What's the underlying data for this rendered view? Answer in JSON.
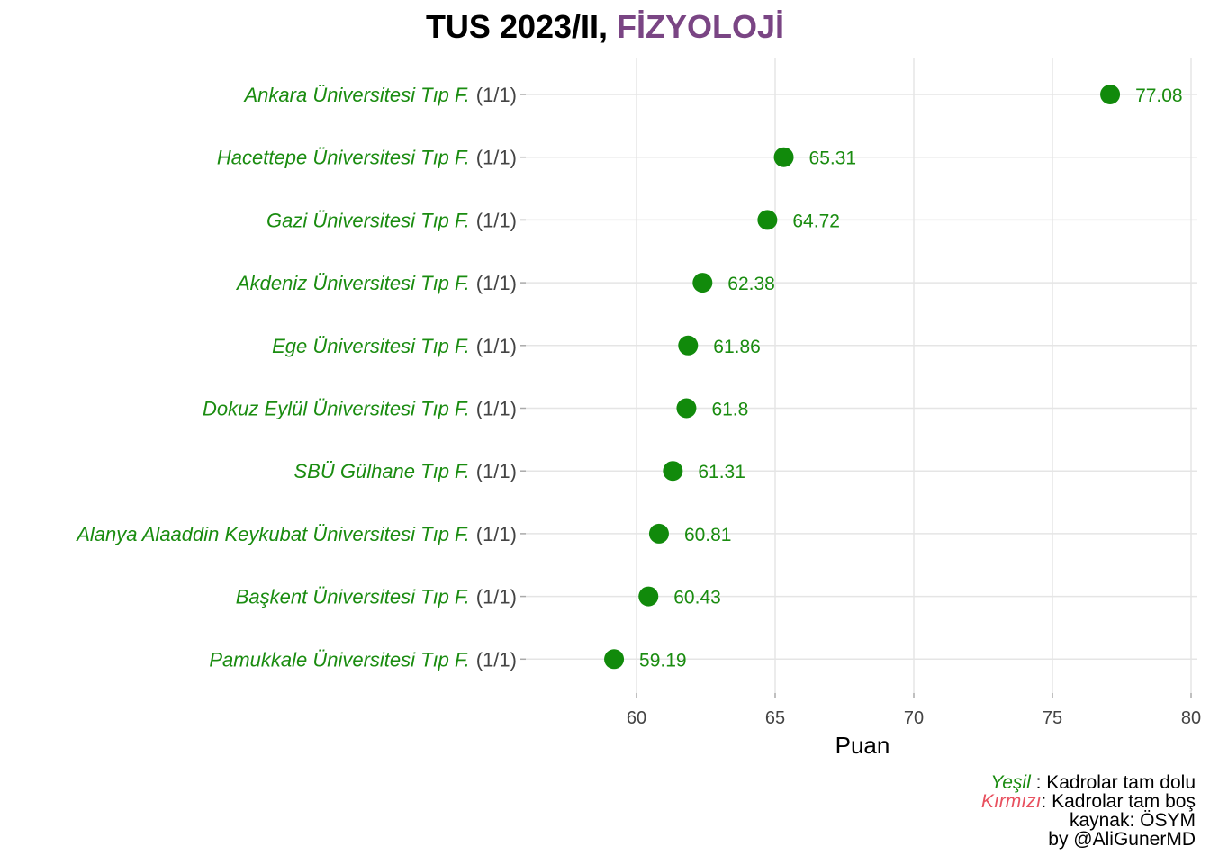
{
  "chart_data": {
    "type": "scatter",
    "orientation": "horizontal-dot",
    "title": "TUS 2023/II, ",
    "title_accent": "FİZYOLOJİ",
    "xlabel": "Puan",
    "ylabel": "",
    "xlim": [
      56,
      80
    ],
    "xticks": [
      60,
      65,
      70,
      75,
      80
    ],
    "grid": true,
    "legend": "none",
    "colors": {
      "point": "#118a0b",
      "label_green": "#1a8c10",
      "accent_title": "#7a4584",
      "red": "#e8515f"
    },
    "rows": [
      {
        "name": "Ankara Üniversitesi Tıp F.",
        "count": "(1/1)",
        "value": 77.08,
        "label": "77.08"
      },
      {
        "name": "Hacettepe Üniversitesi Tıp F.",
        "count": "(1/1)",
        "value": 65.31,
        "label": "65.31"
      },
      {
        "name": "Gazi Üniversitesi Tıp F.",
        "count": "(1/1)",
        "value": 64.72,
        "label": "64.72"
      },
      {
        "name": "Akdeniz Üniversitesi Tıp F.",
        "count": "(1/1)",
        "value": 62.38,
        "label": "62.38"
      },
      {
        "name": "Ege Üniversitesi Tıp F.",
        "count": "(1/1)",
        "value": 61.86,
        "label": "61.86"
      },
      {
        "name": "Dokuz Eylül Üniversitesi Tıp F.",
        "count": "(1/1)",
        "value": 61.8,
        "label": "61.8"
      },
      {
        "name": "SBÜ Gülhane Tıp F.",
        "count": "(1/1)",
        "value": 61.31,
        "label": "61.31"
      },
      {
        "name": "Alanya Alaaddin Keykubat Üniversitesi Tıp F.",
        "count": "(1/1)",
        "value": 60.81,
        "label": "60.81"
      },
      {
        "name": "Başkent Üniversitesi Tıp F.",
        "count": "(1/1)",
        "value": 60.43,
        "label": "60.43"
      },
      {
        "name": "Pamukkale Üniversitesi Tıp F.",
        "count": "(1/1)",
        "value": 59.19,
        "label": "59.19"
      }
    ],
    "caption": {
      "green_word": "Yeşil",
      "green_text": " : Kadrolar tam dolu",
      "red_word": "Kırmızı",
      "red_text": ": Kadrolar tam boş",
      "source": "kaynak: ÖSYM",
      "author": "by @AliGunerMD"
    }
  }
}
